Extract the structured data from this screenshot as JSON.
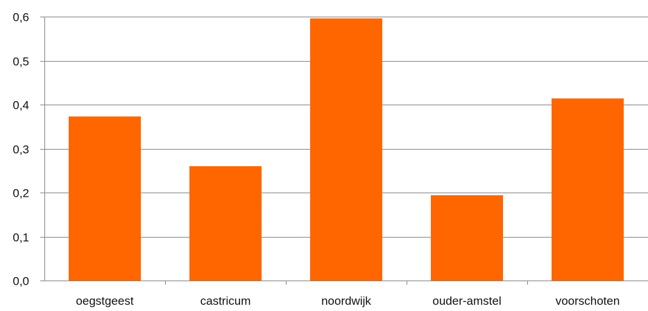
{
  "chart_data": {
    "type": "bar",
    "categories": [
      "oegstgeest",
      "castricum",
      "noordwijk",
      "ouder-amstel",
      "voorschoten"
    ],
    "values": [
      0.373,
      0.26,
      0.596,
      0.194,
      0.414
    ],
    "ylim": [
      0.0,
      0.6
    ],
    "y_ticks": [
      "0,0",
      "0,1",
      "0,2",
      "0,3",
      "0,4",
      "0,5",
      "0,6"
    ],
    "grid": true,
    "legend": "none",
    "colors": {
      "bar": "#FF6600",
      "gridline": "#888888",
      "axis": "#888888",
      "text": "#111111"
    }
  }
}
